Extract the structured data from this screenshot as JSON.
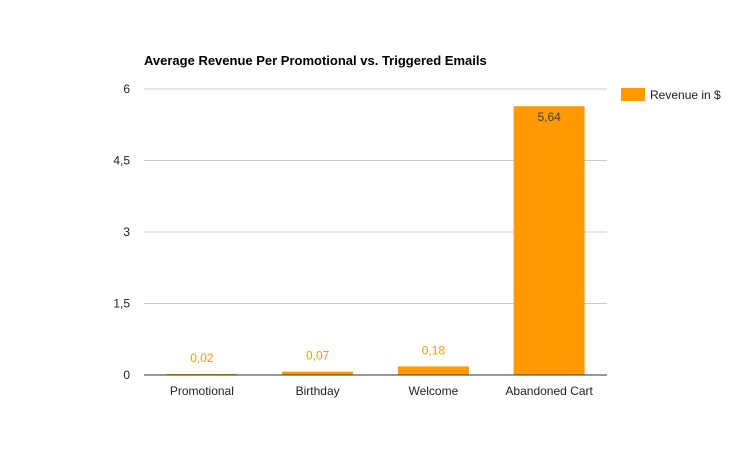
{
  "chart_data": {
    "type": "bar",
    "title": "Average Revenue Per Promotional vs. Triggered Emails",
    "categories": [
      "Promotional",
      "Birthday",
      "Welcome",
      "Abandoned Cart"
    ],
    "series": [
      {
        "name": "Revenue in $",
        "values": [
          0.02,
          0.07,
          0.18,
          5.64
        ],
        "value_labels": [
          "0,02",
          "0,07",
          "0,18",
          "5,64"
        ]
      }
    ],
    "xlabel": "",
    "ylabel": "",
    "ylim": [
      0,
      6
    ],
    "yticks": [
      0,
      1.5,
      3,
      4.5,
      6
    ],
    "ytick_labels": [
      "0",
      "1,5",
      "3",
      "4,5",
      "6"
    ],
    "grid": true,
    "legend_position": "right",
    "colors": {
      "bar": "#ff9900",
      "value_label_outside": "#ff9900",
      "value_label_inside": "#444444",
      "grid": "#cccccc",
      "axis": "#333333",
      "text": "#222222"
    }
  }
}
